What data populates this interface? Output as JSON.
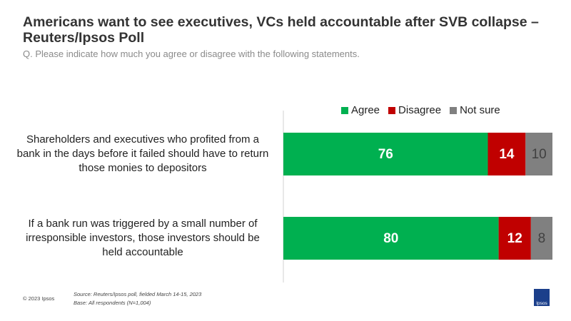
{
  "chart_data": {
    "type": "stacked-bar",
    "title": "Americans want to see executives, VCs held accountable after SVB collapse – Reuters/Ipsos Poll",
    "subtitle": "Q. Please indicate how much you agree or disagree with the following statements.",
    "categories": [
      "Shareholders and executives who profited from a bank in the days before it failed should have to return those monies to depositors",
      "If a bank run was triggered by a small number of irresponsible investors, those investors should be held accountable"
    ],
    "series": [
      {
        "name": "Agree",
        "color": "#00b050",
        "values": [
          76,
          80
        ]
      },
      {
        "name": "Disagree",
        "color": "#c00000",
        "values": [
          14,
          12
        ]
      },
      {
        "name": "Not sure",
        "color": "#808080",
        "values": [
          10,
          8
        ]
      }
    ],
    "xlim": [
      0,
      100
    ],
    "source": "Source:  Reuters/Ipsos  poll,  fielded  March  14-15,  2023",
    "base": "Base:  All respondents   (N=1,004)",
    "copyright": "© 2023 Ipsos",
    "logo": "Ipsos"
  }
}
